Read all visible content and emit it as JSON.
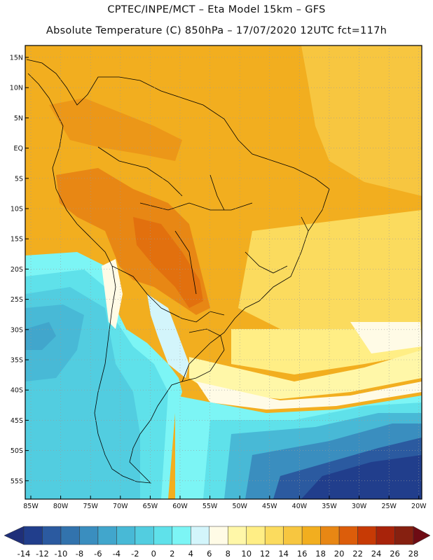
{
  "header": {
    "line1": "CPTEC/INPE/MCT –  Eta Model 15km – GFS",
    "line2": "Absolute Temperature (C) 850hPa – 17/07/2020 12UTC fct=117h"
  },
  "lat_labels": [
    "15N",
    "10N",
    "5N",
    "EQ",
    "5S",
    "10S",
    "15S",
    "20S",
    "25S",
    "30S",
    "35S",
    "40S",
    "45S",
    "50S",
    "55S"
  ],
  "lon_labels": [
    "85W",
    "80W",
    "75W",
    "70W",
    "65W",
    "60W",
    "55W",
    "50W",
    "45W",
    "40W",
    "35W",
    "30W",
    "25W",
    "20W"
  ],
  "colorbar": {
    "labels": [
      "-14",
      "-12",
      "-10",
      "-8",
      "-6",
      "-4",
      "-2",
      "0",
      "2",
      "4",
      "6",
      "8",
      "10",
      "12",
      "14",
      "16",
      "18",
      "20",
      "22",
      "24",
      "26",
      "28"
    ],
    "colors": [
      "#213e8c",
      "#2b5aa0",
      "#3273ad",
      "#3a8ebf",
      "#41a6cc",
      "#48b9d6",
      "#52cde0",
      "#5fe1ea",
      "#7cf5f5",
      "#d3f5fb",
      "#fffbe6",
      "#fff7a8",
      "#ffee85",
      "#fbdb5e",
      "#f7c640",
      "#f2ae1f",
      "#e88714",
      "#dc5d0a",
      "#c73a05",
      "#a8230a",
      "#862010"
    ],
    "low_color": "#1f2f79",
    "high_color": "#6e0b14"
  }
}
